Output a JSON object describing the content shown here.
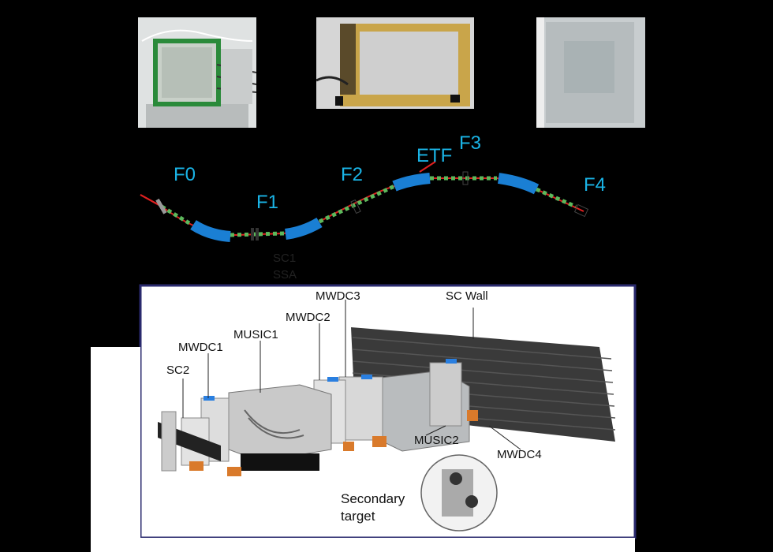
{
  "beamline": {
    "stations": [
      "F0",
      "F1",
      "F2",
      "ETF",
      "F3",
      "F4"
    ],
    "detectors_below_f1": [
      "SC1",
      "SSA"
    ]
  },
  "setup": {
    "labels": {
      "mwdc3": "MWDC3",
      "sc_wall": "SC Wall",
      "mwdc2": "MWDC2",
      "music1": "MUSIC1",
      "mwdc1": "MWDC1",
      "sc2": "SC2",
      "music2": "MUSIC2",
      "mwdc4": "MWDC4",
      "secondary_target": "Secondary\ntarget"
    }
  },
  "colors": {
    "station_label": "#1ab4e6",
    "dipole": "#1a7fd4",
    "quad_green": "#5cb85c",
    "beam": "#e02020",
    "frame": "#2a2a6e"
  }
}
